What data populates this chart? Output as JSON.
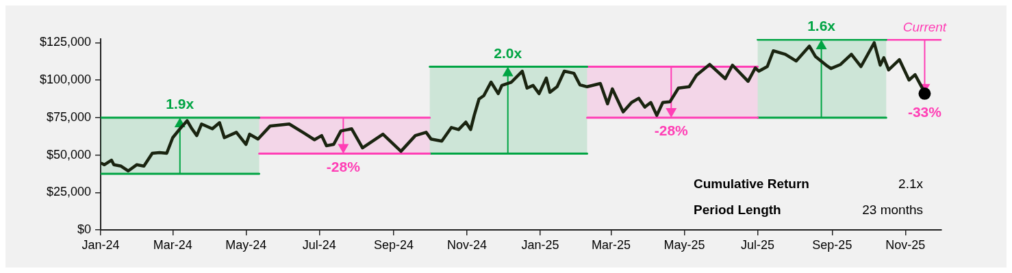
{
  "chart_data": {
    "type": "line",
    "x": [
      "2024-01-02",
      "2024-01-04",
      "2024-01-10",
      "2024-01-12",
      "2024-01-18",
      "2024-01-24",
      "2024-01-31",
      "2024-02-06",
      "2024-02-13",
      "2024-02-19",
      "2024-02-25",
      "2024-03-01",
      "2024-03-07",
      "2024-03-13",
      "2024-03-17",
      "2024-03-21",
      "2024-03-25",
      "2024-04-03",
      "2024-04-09",
      "2024-04-13",
      "2024-04-23",
      "2024-05-01",
      "2024-05-04",
      "2024-05-11",
      "2024-05-21",
      "2024-06-06",
      "2024-06-18",
      "2024-06-27",
      "2024-07-03",
      "2024-07-07",
      "2024-07-13",
      "2024-07-19",
      "2024-07-28",
      "2024-08-06",
      "2024-08-23",
      "2024-08-29",
      "2024-09-07",
      "2024-09-19",
      "2024-09-28",
      "2024-10-02",
      "2024-10-11",
      "2024-10-19",
      "2024-10-25",
      "2024-10-31",
      "2024-11-04",
      "2024-11-07",
      "2024-11-11",
      "2024-11-15",
      "2024-11-21",
      "2024-11-27",
      "2024-11-30",
      "2024-12-08",
      "2024-12-17",
      "2024-12-21",
      "2024-12-26",
      "2024-12-31",
      "2025-01-06",
      "2025-01-09",
      "2025-01-15",
      "2025-01-21",
      "2025-01-29",
      "2025-02-03",
      "2025-02-09",
      "2025-02-20",
      "2025-02-26",
      "2025-03-02",
      "2025-03-11",
      "2025-03-18",
      "2025-03-24",
      "2025-03-29",
      "2025-04-03",
      "2025-04-08",
      "2025-04-13",
      "2025-04-19",
      "2025-04-26",
      "2025-05-05",
      "2025-05-11",
      "2025-05-22",
      "2025-06-04",
      "2025-06-10",
      "2025-06-23",
      "2025-06-29",
      "2025-07-02",
      "2025-07-09",
      "2025-07-14",
      "2025-07-24",
      "2025-08-02",
      "2025-08-13",
      "2025-08-18",
      "2025-08-27",
      "2025-08-31",
      "2025-09-08",
      "2025-09-17",
      "2025-09-25",
      "2025-10-06",
      "2025-10-11",
      "2025-10-14",
      "2025-10-18",
      "2025-10-27",
      "2025-11-04",
      "2025-11-09",
      "2025-11-16",
      "2025-11-17"
    ],
    "series": [
      {
        "color": "#1a2410",
        "values": [
          44400,
          43500,
          46600,
          43500,
          42600,
          39400,
          43500,
          42600,
          51200,
          51600,
          51200,
          61600,
          67500,
          72900,
          67500,
          63000,
          70700,
          67500,
          71600,
          61600,
          65200,
          57100,
          63900,
          60700,
          69300,
          70700,
          64800,
          60200,
          63000,
          56200,
          57100,
          66100,
          67500,
          54800,
          63900,
          59300,
          52500,
          63000,
          65200,
          60700,
          59300,
          68400,
          67000,
          72000,
          67000,
          76500,
          87400,
          89700,
          98700,
          91000,
          96500,
          98700,
          106000,
          94700,
          96500,
          91000,
          101400,
          91900,
          95600,
          106000,
          104600,
          96900,
          95600,
          97800,
          84200,
          94200,
          78800,
          85100,
          87900,
          82000,
          85100,
          76500,
          85100,
          85600,
          94700,
          95600,
          103300,
          110500,
          101000,
          110000,
          99200,
          108200,
          106000,
          109100,
          119600,
          117300,
          112800,
          122700,
          115900,
          110000,
          107800,
          110500,
          117300,
          109100,
          125000,
          110000,
          115000,
          106900,
          113700,
          100100,
          103700,
          93300,
          91000
        ]
      },
      {
        "type": "line",
        "color": "#00a443",
        "x": [
          "2024-01-01",
          "2024-05-12"
        ],
        "values": [
          75000,
          75000
        ],
        "lower": [
          37500,
          37500
        ],
        "upper": [
          75000,
          75000
        ]
      },
      {
        "type": "line",
        "color": "#00a443",
        "x": [
          "2024-01-01",
          "2024-05-12"
        ],
        "values": [
          37500,
          37500
        ]
      },
      {
        "type": "line",
        "color": "#ff3eb5",
        "x": [
          "2024-05-12",
          "2024-10-01"
        ],
        "values": [
          75000,
          75000
        ],
        "lower": [
          51000,
          51000
        ],
        "upper": [
          75000,
          75000
        ]
      },
      {
        "type": "line",
        "color": "#ff3eb5",
        "x": [
          "2024-05-12",
          "2024-10-01"
        ],
        "values": [
          51000,
          51000
        ]
      },
      {
        "type": "line",
        "color": "#00a443",
        "x": [
          "2024-10-01",
          "2025-02-09"
        ],
        "values": [
          109000,
          109000
        ],
        "lower": [
          51000,
          51000
        ],
        "upper": [
          109000,
          109000
        ]
      },
      {
        "type": "line",
        "color": "#00a443",
        "x": [
          "2024-10-01",
          "2025-02-09"
        ],
        "values": [
          51000,
          51000
        ]
      },
      {
        "type": "line",
        "color": "#ff3eb5",
        "x": [
          "2025-02-09",
          "2025-07-01"
        ],
        "values": [
          109000,
          109000
        ],
        "lower": [
          75000,
          75000
        ],
        "upper": [
          109000,
          109000
        ]
      },
      {
        "type": "line",
        "color": "#ff3eb5",
        "x": [
          "2025-02-09",
          "2025-07-01"
        ],
        "values": [
          75000,
          75000
        ]
      },
      {
        "type": "line",
        "color": "#00a443",
        "x": [
          "2025-07-01",
          "2025-10-16"
        ],
        "values": [
          127000,
          127000
        ],
        "lower": [
          75000,
          75000
        ],
        "upper": [
          127000,
          127000
        ]
      },
      {
        "type": "line",
        "color": "#00a443",
        "x": [
          "2025-07-01",
          "2025-10-16"
        ],
        "values": [
          75000,
          75000
        ]
      },
      {
        "type": "line",
        "color": "#ff3eb5",
        "x": [
          "2025-10-16",
          "2025-12-01"
        ],
        "values": [
          127000,
          127000
        ]
      }
    ],
    "xlim": [
      "2024-01-01",
      "2025-12-01"
    ],
    "xticks": [
      {
        "value": "2024-01-01",
        "label": "Jan-24"
      },
      {
        "value": "2024-03-01",
        "label": "Mar-24"
      },
      {
        "value": "2024-05-01",
        "label": "May-24"
      },
      {
        "value": "2024-07-01",
        "label": "Jul-24"
      },
      {
        "value": "2024-09-01",
        "label": "Sep-24"
      },
      {
        "value": "2024-11-01",
        "label": "Nov-24"
      },
      {
        "value": "2025-01-01",
        "label": "Jan-25"
      },
      {
        "value": "2025-03-01",
        "label": "Mar-25"
      },
      {
        "value": "2025-05-01",
        "label": "May-25"
      },
      {
        "value": "2025-07-01",
        "label": "Jul-25"
      },
      {
        "value": "2025-09-01",
        "label": "Sep-25"
      },
      {
        "value": "2025-11-01",
        "label": "Nov-25"
      }
    ],
    "ylim": [
      0,
      127500
    ],
    "yticks": [
      {
        "value": 0,
        "label": "$0"
      },
      {
        "value": 25000,
        "label": "$25,000"
      },
      {
        "value": 50000,
        "label": "$50,000"
      },
      {
        "value": 75000,
        "label": "$75,000"
      },
      {
        "value": 100000,
        "label": "$100,000"
      },
      {
        "value": 125000,
        "label": "$125,000"
      }
    ],
    "annotations": [
      {
        "text": "1.9x",
        "x": "2024-03-07",
        "y": 75000
      },
      {
        "text": "-28%",
        "x": "2024-07-21",
        "y": 51000
      },
      {
        "text": "2.0x",
        "x": "2024-12-05",
        "y": 109000
      },
      {
        "text": "-28%",
        "x": "2025-04-20",
        "y": 75000
      },
      {
        "text": "1.6x",
        "x": "2025-08-23",
        "y": 127000
      },
      {
        "text": "Current",
        "x": "2025-11-17",
        "y": 127000
      },
      {
        "text": "-33%",
        "x": "2025-11-17",
        "y": 91000
      },
      "Cumulative Return",
      "2.1x",
      "Period Length",
      "23 months"
    ],
    "grid": false
  }
}
